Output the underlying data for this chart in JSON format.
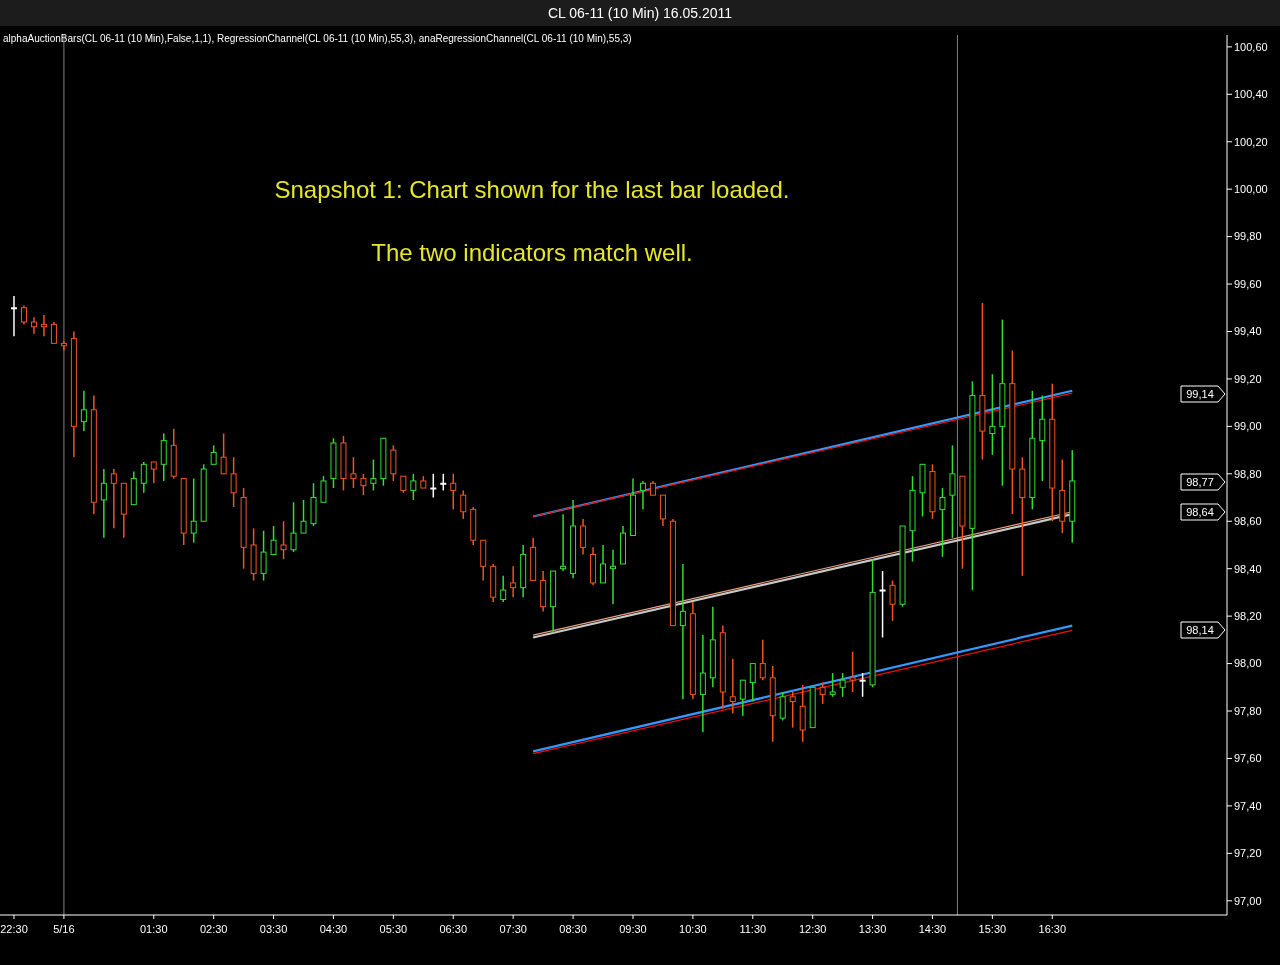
{
  "chart_data": {
    "type": "candlestick",
    "title": "CL 06-11 (10 Min)  16.05.2011",
    "subtitle": "alphaAuctionBars(CL 06-11 (10 Min),False,1,1), RegressionChannel(CL 06-11 (10 Min),55,3), anaRegressionChannel(CL 06-11 (10 Min),55,3)",
    "categories": [
      "22:30",
      null,
      null,
      null,
      null,
      "5/16",
      null,
      null,
      null,
      null,
      null,
      null,
      null,
      null,
      "01:30",
      null,
      null,
      null,
      null,
      null,
      "02:30",
      null,
      null,
      null,
      null,
      null,
      "03:30",
      null,
      null,
      null,
      null,
      null,
      "04:30",
      null,
      null,
      null,
      null,
      null,
      "05:30",
      null,
      null,
      null,
      null,
      null,
      "06:30",
      null,
      null,
      null,
      null,
      null,
      "07:30",
      null,
      null,
      null,
      null,
      null,
      "08:30",
      null,
      null,
      null,
      null,
      null,
      "09:30",
      null,
      null,
      null,
      null,
      null,
      "10:30",
      null,
      null,
      null,
      null,
      null,
      "11:30",
      null,
      null,
      null,
      null,
      null,
      "12:30",
      null,
      null,
      null,
      null,
      null,
      "13:30",
      null,
      null,
      null,
      null,
      null,
      "14:30",
      null,
      null,
      null,
      null,
      null,
      "15:30",
      null,
      null,
      null,
      null,
      null,
      "16:30",
      null,
      null,
      null,
      null,
      null,
      null,
      null,
      null,
      null,
      null,
      null,
      null,
      null,
      null,
      null,
      null,
      null
    ],
    "ohlc": [
      [
        99.5,
        99.55,
        99.38,
        99.5
      ],
      [
        99.5,
        99.51,
        99.43,
        99.44
      ],
      [
        99.44,
        99.46,
        99.39,
        99.42
      ],
      [
        99.43,
        99.47,
        99.38,
        99.42
      ],
      [
        99.43,
        99.44,
        99.35,
        99.35
      ],
      [
        99.35,
        99.36,
        99.32,
        99.34
      ],
      [
        99.37,
        99.4,
        98.87,
        99.0
      ],
      [
        99.02,
        99.15,
        98.98,
        99.07
      ],
      [
        99.07,
        99.13,
        98.63,
        98.68
      ],
      [
        98.69,
        98.82,
        98.53,
        98.76
      ],
      [
        98.8,
        98.82,
        98.57,
        98.76
      ],
      [
        98.76,
        98.76,
        98.53,
        98.63
      ],
      [
        98.67,
        98.81,
        98.67,
        98.78
      ],
      [
        98.76,
        98.85,
        98.72,
        98.84
      ],
      [
        98.85,
        98.85,
        98.76,
        98.82
      ],
      [
        98.84,
        98.97,
        98.77,
        98.94
      ],
      [
        98.92,
        98.99,
        98.78,
        98.79
      ],
      [
        98.78,
        98.78,
        98.5,
        98.55
      ],
      [
        98.55,
        98.78,
        98.51,
        98.6
      ],
      [
        98.6,
        98.84,
        98.6,
        98.82
      ],
      [
        98.84,
        98.92,
        98.84,
        98.89
      ],
      [
        98.87,
        98.97,
        98.8,
        98.8
      ],
      [
        98.8,
        98.87,
        98.66,
        98.72
      ],
      [
        98.7,
        98.74,
        98.4,
        98.49
      ],
      [
        98.5,
        98.57,
        98.35,
        98.38
      ],
      [
        98.38,
        98.56,
        98.35,
        98.47
      ],
      [
        98.46,
        98.58,
        98.46,
        98.52
      ],
      [
        98.5,
        98.6,
        98.44,
        98.48
      ],
      [
        98.48,
        98.68,
        98.47,
        98.55
      ],
      [
        98.55,
        98.69,
        98.55,
        98.6
      ],
      [
        98.59,
        98.76,
        98.58,
        98.7
      ],
      [
        98.68,
        98.79,
        98.68,
        98.77
      ],
      [
        98.78,
        98.95,
        98.74,
        98.93
      ],
      [
        98.93,
        98.96,
        98.73,
        98.78
      ],
      [
        98.8,
        98.87,
        98.74,
        98.78
      ],
      [
        98.78,
        98.8,
        98.71,
        98.75
      ],
      [
        98.76,
        98.86,
        98.73,
        98.78
      ],
      [
        98.78,
        98.95,
        98.75,
        98.95
      ],
      [
        98.9,
        98.92,
        98.77,
        98.8
      ],
      [
        98.79,
        98.79,
        98.72,
        98.73
      ],
      [
        98.73,
        98.8,
        98.69,
        98.77
      ],
      [
        98.77,
        98.79,
        98.74,
        98.74
      ],
      [
        98.74,
        98.8,
        98.7,
        98.74
      ],
      [
        98.76,
        98.8,
        98.73,
        98.76
      ],
      [
        98.76,
        98.8,
        98.65,
        98.73
      ],
      [
        98.71,
        98.73,
        98.61,
        98.64
      ],
      [
        98.65,
        98.66,
        98.5,
        98.52
      ],
      [
        98.52,
        98.52,
        98.35,
        98.41
      ],
      [
        98.41,
        98.42,
        98.26,
        98.28
      ],
      [
        98.27,
        98.37,
        98.26,
        98.31
      ],
      [
        98.34,
        98.41,
        98.28,
        98.32
      ],
      [
        98.32,
        98.5,
        98.28,
        98.46
      ],
      [
        98.49,
        98.53,
        98.35,
        98.35
      ],
      [
        98.35,
        98.39,
        98.22,
        98.24
      ],
      [
        98.24,
        98.39,
        98.13,
        98.39
      ],
      [
        98.4,
        98.63,
        98.39,
        98.41
      ],
      [
        98.38,
        98.69,
        98.36,
        98.58
      ],
      [
        98.58,
        98.61,
        98.46,
        98.49
      ],
      [
        98.46,
        98.49,
        98.33,
        98.34
      ],
      [
        98.34,
        98.5,
        98.34,
        98.42
      ],
      [
        98.4,
        98.48,
        98.25,
        98.41
      ],
      [
        98.42,
        98.58,
        98.42,
        98.55
      ],
      [
        98.54,
        98.78,
        98.54,
        98.71
      ],
      [
        98.73,
        98.77,
        98.65,
        98.76
      ],
      [
        98.76,
        98.77,
        98.71,
        98.71
      ],
      [
        98.71,
        98.71,
        98.58,
        98.61
      ],
      [
        98.6,
        98.61,
        98.16,
        98.16
      ],
      [
        98.16,
        98.42,
        97.85,
        98.22
      ],
      [
        98.21,
        98.26,
        97.85,
        97.87
      ],
      [
        97.87,
        98.12,
        97.71,
        97.96
      ],
      [
        97.94,
        98.24,
        97.9,
        98.1
      ],
      [
        98.13,
        98.16,
        97.81,
        97.88
      ],
      [
        97.86,
        98.02,
        97.79,
        97.84
      ],
      [
        97.85,
        97.93,
        97.78,
        97.93
      ],
      [
        97.92,
        98.0,
        97.84,
        98.0
      ],
      [
        98.0,
        98.1,
        97.93,
        97.94
      ],
      [
        97.94,
        97.99,
        97.67,
        97.78
      ],
      [
        97.77,
        97.88,
        97.76,
        97.86
      ],
      [
        97.86,
        97.88,
        97.73,
        97.84
      ],
      [
        97.82,
        97.91,
        97.67,
        97.72
      ],
      [
        97.73,
        97.9,
        97.73,
        97.9
      ],
      [
        97.9,
        97.92,
        97.83,
        97.87
      ],
      [
        97.87,
        97.96,
        97.86,
        97.88
      ],
      [
        97.9,
        97.96,
        97.86,
        97.93
      ],
      [
        97.94,
        98.05,
        97.88,
        97.93
      ],
      [
        97.93,
        97.96,
        97.86,
        97.93
      ],
      [
        97.91,
        98.44,
        97.9,
        98.3
      ],
      [
        98.31,
        98.39,
        98.11,
        98.31
      ],
      [
        98.33,
        98.35,
        98.18,
        98.25
      ],
      [
        98.25,
        98.58,
        98.24,
        98.58
      ],
      [
        98.56,
        98.79,
        98.43,
        98.73
      ],
      [
        98.72,
        98.84,
        98.62,
        98.84
      ],
      [
        98.81,
        98.84,
        98.61,
        98.64
      ],
      [
        98.65,
        98.74,
        98.45,
        98.7
      ],
      [
        98.71,
        98.92,
        98.53,
        98.8
      ],
      [
        98.79,
        98.79,
        98.4,
        98.58
      ],
      [
        98.57,
        99.19,
        98.31,
        99.13
      ],
      [
        99.13,
        99.52,
        98.86,
        98.98
      ],
      [
        98.97,
        99.22,
        98.88,
        99.0
      ],
      [
        99.0,
        99.45,
        98.75,
        99.18
      ],
      [
        99.18,
        99.32,
        98.63,
        98.82
      ],
      [
        98.82,
        98.87,
        98.37,
        98.7
      ],
      [
        98.7,
        99.15,
        98.65,
        98.95
      ],
      [
        98.94,
        99.13,
        98.77,
        99.03
      ],
      [
        99.03,
        99.18,
        98.6,
        98.74
      ],
      [
        98.73,
        98.86,
        98.55,
        98.6
      ],
      [
        98.6,
        98.9,
        98.51,
        98.77
      ],
      null,
      null,
      null,
      null,
      null,
      null,
      null,
      null,
      null,
      null,
      null,
      null,
      null,
      null,
      null
    ],
    "colors": [
      "#ffffff",
      "#ee5522",
      "#ee5522",
      "#ee5522",
      "#ee5522",
      "#ee5522",
      "#ee5522",
      "#33dd33",
      "#ee5522",
      "#33dd33",
      "#ee5522",
      "#ee5522",
      "#33dd33",
      "#33dd33",
      "#ee5522",
      "#33dd33",
      "#ee5522",
      "#ee5522",
      "#33dd33",
      "#33dd33",
      "#33dd33",
      "#ee5522",
      "#ee5522",
      "#ee5522",
      "#ee5522",
      "#33dd33",
      "#33dd33",
      "#ee5522",
      "#33dd33",
      "#33dd33",
      "#33dd33",
      "#33dd33",
      "#33dd33",
      "#ee5522",
      "#ee5522",
      "#ee5522",
      "#33dd33",
      "#33dd33",
      "#ee5522",
      "#ee5522",
      "#33dd33",
      "#ee5522",
      "#ffffff",
      "#ffffff",
      "#ee5522",
      "#ee5522",
      "#ee5522",
      "#ee5522",
      "#ee5522",
      "#33dd33",
      "#ee5522",
      "#33dd33",
      "#ee5522",
      "#ee5522",
      "#33dd33",
      "#33dd33",
      "#33dd33",
      "#ee5522",
      "#ee5522",
      "#33dd33",
      "#33dd33",
      "#33dd33",
      "#33dd33",
      "#33dd33",
      "#ee5522",
      "#ee5522",
      "#ee5522",
      "#33dd33",
      "#ee5522",
      "#33dd33",
      "#33dd33",
      "#ee5522",
      "#ee5522",
      "#33dd33",
      "#33dd33",
      "#ee5522",
      "#ee5522",
      "#33dd33",
      "#ee5522",
      "#ee5522",
      "#33dd33",
      "#ee5522",
      "#33dd33",
      "#33dd33",
      "#ee5522",
      "#ffffff",
      "#33dd33",
      "#ffffff",
      "#ee5522",
      "#33dd33",
      "#33dd33",
      "#33dd33",
      "#ee5522",
      "#33dd33",
      "#33dd33",
      "#ee5522",
      "#33dd33",
      "#ee5522",
      "#33dd33",
      "#33dd33",
      "#ee5522",
      "#ee5522",
      "#33dd33",
      "#33dd33",
      "#ee5522",
      "#ee5522",
      "#33dd33",
      null,
      null,
      null,
      null,
      null,
      null,
      null,
      null,
      null,
      null,
      null,
      null,
      null,
      null,
      null
    ],
    "series": [
      {
        "type": "line",
        "color": "#3399ff",
        "values": [
          null,
          null,
          null,
          null,
          null,
          null,
          null,
          null,
          null,
          null,
          null,
          null,
          null,
          null,
          null,
          null,
          null,
          null,
          null,
          null,
          null,
          null,
          null,
          null,
          null,
          null,
          null,
          null,
          null,
          null,
          null,
          null,
          null,
          null,
          null,
          null,
          null,
          null,
          null,
          null,
          null,
          null,
          null,
          null,
          null,
          null,
          null,
          null,
          null,
          null,
          null,
          null,
          98.62,
          null,
          null,
          null,
          null,
          null,
          null,
          null,
          null,
          null,
          null,
          null,
          null,
          null,
          null,
          null,
          null,
          null,
          null,
          null,
          null,
          null,
          null,
          null,
          null,
          null,
          null,
          null,
          null,
          null,
          null,
          null,
          null,
          null,
          null,
          null,
          null,
          null,
          null,
          null,
          null,
          null,
          null,
          null,
          null,
          null,
          null,
          null,
          null,
          null,
          null,
          null,
          null,
          null,
          99.15,
          null,
          null,
          null,
          null,
          null,
          null,
          null,
          null,
          null,
          null,
          null,
          null,
          null,
          null,
          null
        ]
      },
      {
        "type": "line",
        "color": "#ee1111",
        "values": [
          null,
          null,
          null,
          null,
          null,
          null,
          null,
          null,
          null,
          null,
          null,
          null,
          null,
          null,
          null,
          null,
          null,
          null,
          null,
          null,
          null,
          null,
          null,
          null,
          null,
          null,
          null,
          null,
          null,
          null,
          null,
          null,
          null,
          null,
          null,
          null,
          null,
          null,
          null,
          null,
          null,
          null,
          null,
          null,
          null,
          null,
          null,
          null,
          null,
          null,
          null,
          null,
          98.62,
          null,
          null,
          null,
          null,
          null,
          null,
          null,
          null,
          null,
          null,
          null,
          null,
          null,
          null,
          null,
          null,
          null,
          null,
          null,
          null,
          null,
          null,
          null,
          null,
          null,
          null,
          null,
          null,
          null,
          null,
          null,
          null,
          null,
          null,
          null,
          null,
          null,
          null,
          null,
          null,
          null,
          null,
          null,
          null,
          null,
          null,
          null,
          null,
          null,
          null,
          null,
          null,
          null,
          99.14,
          null,
          null,
          null,
          null,
          null,
          null,
          null,
          null,
          null,
          null,
          null,
          null,
          null,
          null,
          null
        ]
      },
      {
        "type": "line",
        "color": "#c8c8c8",
        "values": [
          null,
          null,
          null,
          null,
          null,
          null,
          null,
          null,
          null,
          null,
          null,
          null,
          null,
          null,
          null,
          null,
          null,
          null,
          null,
          null,
          null,
          null,
          null,
          null,
          null,
          null,
          null,
          null,
          null,
          null,
          null,
          null,
          null,
          null,
          null,
          null,
          null,
          null,
          null,
          null,
          null,
          null,
          null,
          null,
          null,
          null,
          null,
          null,
          null,
          null,
          null,
          null,
          98.11,
          null,
          null,
          null,
          null,
          null,
          null,
          null,
          null,
          null,
          null,
          null,
          null,
          null,
          null,
          null,
          null,
          null,
          null,
          null,
          null,
          null,
          null,
          null,
          null,
          null,
          null,
          null,
          null,
          null,
          null,
          null,
          null,
          null,
          null,
          null,
          null,
          null,
          null,
          null,
          null,
          null,
          null,
          null,
          null,
          null,
          null,
          null,
          null,
          null,
          null,
          null,
          null,
          null,
          98.63,
          null,
          null,
          null,
          null,
          null,
          null,
          null,
          null,
          null,
          null,
          null,
          null,
          null,
          null,
          null
        ]
      },
      {
        "type": "line",
        "color": "#e8a080",
        "values": [
          null,
          null,
          null,
          null,
          null,
          null,
          null,
          null,
          null,
          null,
          null,
          null,
          null,
          null,
          null,
          null,
          null,
          null,
          null,
          null,
          null,
          null,
          null,
          null,
          null,
          null,
          null,
          null,
          null,
          null,
          null,
          null,
          null,
          null,
          null,
          null,
          null,
          null,
          null,
          null,
          null,
          null,
          null,
          null,
          null,
          null,
          null,
          null,
          null,
          null,
          null,
          null,
          98.12,
          null,
          null,
          null,
          null,
          null,
          null,
          null,
          null,
          null,
          null,
          null,
          null,
          null,
          null,
          null,
          null,
          null,
          null,
          null,
          null,
          null,
          null,
          null,
          null,
          null,
          null,
          null,
          null,
          null,
          null,
          null,
          null,
          null,
          null,
          null,
          null,
          null,
          null,
          null,
          null,
          null,
          null,
          null,
          null,
          null,
          null,
          null,
          null,
          null,
          null,
          null,
          null,
          null,
          98.64,
          null,
          null,
          null,
          null,
          null,
          null,
          null,
          null,
          null,
          null,
          null,
          null,
          null,
          null,
          null
        ]
      },
      {
        "type": "line",
        "color": "#3399ff",
        "values": [
          null,
          null,
          null,
          null,
          null,
          null,
          null,
          null,
          null,
          null,
          null,
          null,
          null,
          null,
          null,
          null,
          null,
          null,
          null,
          null,
          null,
          null,
          null,
          null,
          null,
          null,
          null,
          null,
          null,
          null,
          null,
          null,
          null,
          null,
          null,
          null,
          null,
          null,
          null,
          null,
          null,
          null,
          null,
          null,
          null,
          null,
          null,
          null,
          null,
          null,
          null,
          null,
          97.63,
          null,
          null,
          null,
          null,
          null,
          null,
          null,
          null,
          null,
          null,
          null,
          null,
          null,
          null,
          null,
          null,
          null,
          null,
          null,
          null,
          null,
          null,
          null,
          null,
          null,
          null,
          null,
          null,
          null,
          null,
          null,
          null,
          null,
          null,
          null,
          null,
          null,
          null,
          null,
          null,
          null,
          null,
          null,
          null,
          null,
          null,
          null,
          null,
          null,
          null,
          null,
          null,
          null,
          98.16,
          null,
          null,
          null,
          null,
          null,
          null,
          null,
          null,
          null,
          null,
          null,
          null,
          null,
          null,
          null
        ]
      },
      {
        "type": "line",
        "color": "#ee1111",
        "values": [
          null,
          null,
          null,
          null,
          null,
          null,
          null,
          null,
          null,
          null,
          null,
          null,
          null,
          null,
          null,
          null,
          null,
          null,
          null,
          null,
          null,
          null,
          null,
          null,
          null,
          null,
          null,
          null,
          null,
          null,
          null,
          null,
          null,
          null,
          null,
          null,
          null,
          null,
          null,
          null,
          null,
          null,
          null,
          null,
          null,
          null,
          null,
          null,
          null,
          null,
          null,
          null,
          97.62,
          null,
          null,
          null,
          null,
          null,
          null,
          null,
          null,
          null,
          null,
          null,
          null,
          null,
          null,
          null,
          null,
          null,
          null,
          null,
          null,
          null,
          null,
          null,
          null,
          null,
          null,
          null,
          null,
          null,
          null,
          null,
          null,
          null,
          null,
          null,
          null,
          null,
          null,
          null,
          null,
          null,
          null,
          null,
          null,
          null,
          null,
          null,
          null,
          null,
          null,
          null,
          null,
          null,
          98.14,
          null,
          null,
          null,
          null,
          null,
          null,
          null,
          null,
          null,
          null,
          null,
          null,
          null,
          null,
          null
        ]
      }
    ],
    "ref_lines": [
      {
        "axis": "x",
        "value": "5/16",
        "color": "#808080"
      }
    ],
    "ylim": [
      96.94,
      100.65
    ],
    "yticks": [
      {
        "value": 97,
        "label": "97,00"
      },
      {
        "value": 97.2,
        "label": "97,20"
      },
      {
        "value": 97.4,
        "label": "97,40"
      },
      {
        "value": 97.6,
        "label": "97,60"
      },
      {
        "value": 97.8,
        "label": "97,80"
      },
      {
        "value": 98,
        "label": "98,00"
      },
      {
        "value": 98.2,
        "label": "98,20"
      },
      {
        "value": 98.4,
        "label": "98,40"
      },
      {
        "value": 98.6,
        "label": "98,60"
      },
      {
        "value": 98.8,
        "label": "98,80"
      },
      {
        "value": 99,
        "label": "99,00"
      },
      {
        "value": 99.2,
        "label": "99,20"
      },
      {
        "value": 99.4,
        "label": "99,40"
      },
      {
        "value": 99.6,
        "label": "99,60"
      },
      {
        "value": 99.8,
        "label": "99,80"
      },
      {
        "value": 100,
        "label": "100,00"
      },
      {
        "value": 100.2,
        "label": "100,20"
      },
      {
        "value": 100.4,
        "label": "100,40"
      },
      {
        "value": 100.6,
        "label": "100,60"
      }
    ],
    "annotations": [
      "Snapshot 1: Chart shown for the last bar loaded.",
      "The two indicators match well.",
      "99,14",
      "98,77",
      "98,64",
      "98,14"
    ],
    "grid": false
  }
}
